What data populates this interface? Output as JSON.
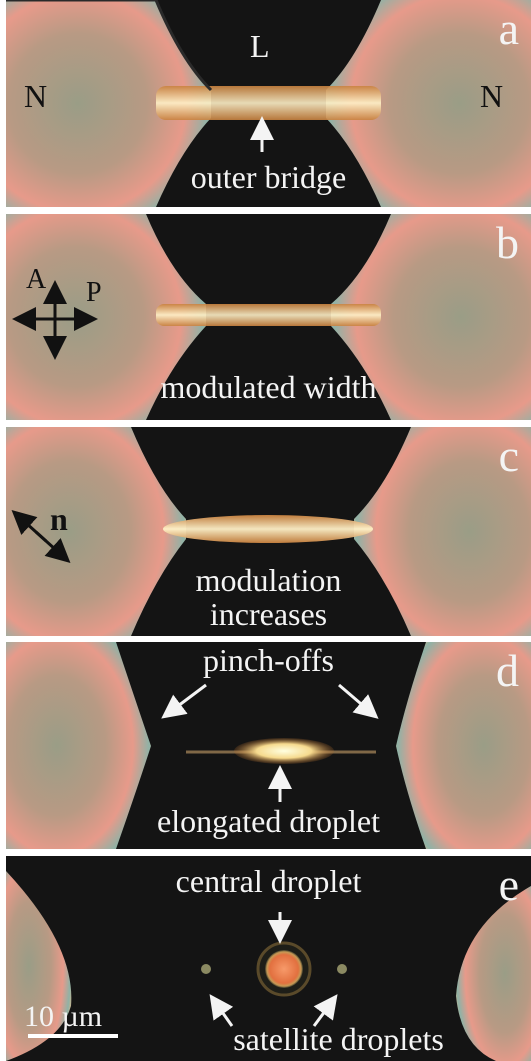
{
  "panels": [
    {
      "letter": "a",
      "labels": {
        "left": "N",
        "top": "L",
        "right": "N"
      },
      "caption": "outer bridge"
    },
    {
      "letter": "b",
      "polarizer": {
        "analyzer": "A",
        "polarizer": "P"
      },
      "caption": "modulated width"
    },
    {
      "letter": "c",
      "director": "n",
      "caption": "modulation\nincreases"
    },
    {
      "letter": "d",
      "caption_top": "pinch-offs",
      "caption": "elongated droplet"
    },
    {
      "letter": "e",
      "caption_top": "central droplet",
      "caption": "satellite droplets",
      "scale_bar": "10 µm"
    }
  ],
  "colors": {
    "background": "#141414",
    "frame": "#ffffff",
    "text": "#f4f4f4",
    "droplet": "#e2703f"
  }
}
